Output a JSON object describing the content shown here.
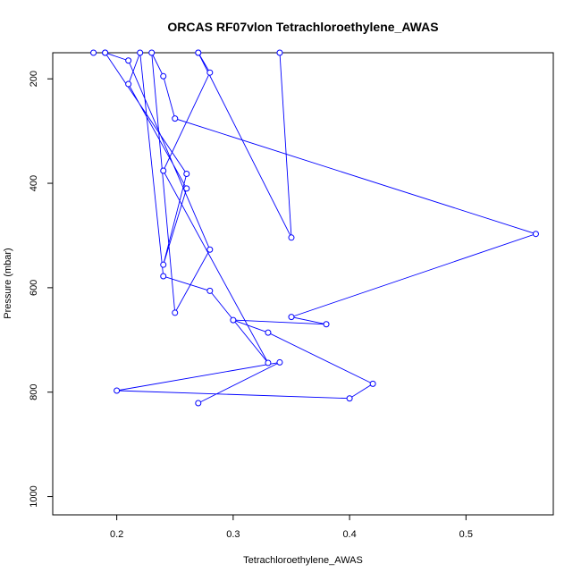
{
  "chart_data": {
    "type": "line",
    "title": "ORCAS RF07vlon Tetrachloroethylene_AWAS",
    "xlabel": "Tetrachloroethylene_AWAS",
    "ylabel": "Pressure (mbar)",
    "xlim": [
      0.145,
      0.575
    ],
    "ylim": [
      1035,
      150
    ],
    "y_inverted": true,
    "x_ticks": [
      0.2,
      0.3,
      0.4,
      0.5
    ],
    "x_tick_labels": [
      "0.2",
      "0.3",
      "0.4",
      "0.5"
    ],
    "y_ticks": [
      200,
      400,
      600,
      800,
      1000
    ],
    "y_tick_labels": [
      "200",
      "400",
      "600",
      "800",
      "1000"
    ],
    "grid": false,
    "series": [
      {
        "color": "#0000ff",
        "marker": "open-circle",
        "points": [
          {
            "x": 0.27,
            "y": 821
          },
          {
            "x": 0.34,
            "y": 743
          },
          {
            "x": 0.2,
            "y": 797
          },
          {
            "x": 0.4,
            "y": 812
          },
          {
            "x": 0.42,
            "y": 784
          },
          {
            "x": 0.33,
            "y": 686
          },
          {
            "x": 0.3,
            "y": 662
          },
          {
            "x": 0.38,
            "y": 670
          },
          {
            "x": 0.35,
            "y": 656
          },
          {
            "x": 0.56,
            "y": 497
          },
          {
            "x": 0.25,
            "y": 276
          },
          {
            "x": 0.24,
            "y": 195
          },
          {
            "x": 0.23,
            "y": 150
          },
          {
            "x": 0.25,
            "y": 648
          },
          {
            "x": 0.28,
            "y": 527
          },
          {
            "x": 0.21,
            "y": 165
          },
          {
            "x": 0.19,
            "y": 150
          },
          {
            "x": 0.26,
            "y": 382
          },
          {
            "x": 0.24,
            "y": 556
          },
          {
            "x": 0.26,
            "y": 410
          },
          {
            "x": 0.21,
            "y": 210
          },
          {
            "x": 0.22,
            "y": 150
          },
          {
            "x": 0.24,
            "y": 578
          },
          {
            "x": 0.28,
            "y": 606
          },
          {
            "x": 0.33,
            "y": 744
          },
          {
            "x": 0.24,
            "y": 376
          },
          {
            "x": 0.28,
            "y": 188
          },
          {
            "x": 0.27,
            "y": 150
          },
          {
            "x": 0.35,
            "y": 504
          },
          {
            "x": 0.34,
            "y": 150
          }
        ],
        "extra_points": [
          {
            "x": 0.18,
            "y": 150
          },
          {
            "x": 0.19,
            "y": 150
          },
          {
            "x": 0.27,
            "y": 150
          }
        ]
      }
    ]
  }
}
